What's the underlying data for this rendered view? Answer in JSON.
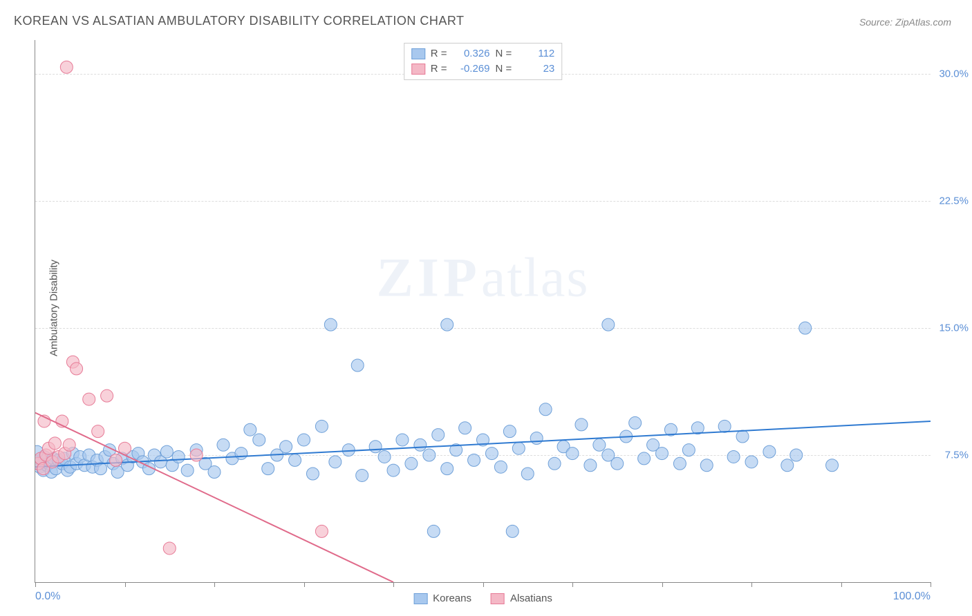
{
  "title": "KOREAN VS ALSATIAN AMBULATORY DISABILITY CORRELATION CHART",
  "source": "Source: ZipAtlas.com",
  "y_axis_label": "Ambulatory Disability",
  "watermark_zip": "ZIP",
  "watermark_atlas": "atlas",
  "chart": {
    "type": "scatter",
    "xlim": [
      0,
      100
    ],
    "ylim": [
      0,
      32
    ],
    "x_ticks": [
      0,
      10,
      20,
      30,
      40,
      50,
      60,
      70,
      80,
      90,
      100
    ],
    "x_tick_labels_shown": {
      "0": "0.0%",
      "100": "100.0%"
    },
    "y_ticks": [
      7.5,
      15.0,
      22.5,
      30.0
    ],
    "y_tick_labels": [
      "7.5%",
      "15.0%",
      "22.5%",
      "30.0%"
    ],
    "background_color": "#ffffff",
    "grid_color": "#dddddd",
    "axis_color": "#888888",
    "tick_label_color": "#5b8fd6",
    "series": [
      {
        "name": "Koreans",
        "marker_color_fill": "#a8c8ee",
        "marker_color_stroke": "#6fa0d8",
        "marker_opacity": 0.65,
        "marker_radius": 9,
        "trend_color": "#2f7ad1",
        "trend_width": 2,
        "R_label": "R =",
        "R": "0.326",
        "N_label": "N =",
        "N": "112",
        "trend": {
          "x1": 0,
          "y1": 6.8,
          "x2": 100,
          "y2": 9.5
        },
        "points": [
          [
            0.3,
            7.1
          ],
          [
            0.5,
            6.8
          ],
          [
            0.6,
            7.2
          ],
          [
            0.9,
            6.6
          ],
          [
            1.0,
            7.4
          ],
          [
            1.3,
            6.9
          ],
          [
            1.5,
            7.0
          ],
          [
            1.8,
            6.5
          ],
          [
            2.0,
            7.3
          ],
          [
            2.3,
            6.7
          ],
          [
            2.6,
            7.2
          ],
          [
            3.0,
            7.0
          ],
          [
            3.2,
            7.3
          ],
          [
            3.6,
            6.6
          ],
          [
            3.9,
            6.8
          ],
          [
            4.2,
            7.6
          ],
          [
            4.6,
            7.0
          ],
          [
            5.0,
            7.4
          ],
          [
            5.5,
            6.9
          ],
          [
            6.0,
            7.5
          ],
          [
            6.4,
            6.8
          ],
          [
            6.9,
            7.2
          ],
          [
            7.3,
            6.7
          ],
          [
            7.8,
            7.4
          ],
          [
            8.3,
            7.8
          ],
          [
            8.7,
            7.0
          ],
          [
            9.2,
            6.5
          ],
          [
            9.7,
            7.3
          ],
          [
            10.3,
            6.9
          ],
          [
            10.9,
            7.4
          ],
          [
            11.5,
            7.6
          ],
          [
            12.0,
            7.1
          ],
          [
            12.7,
            6.7
          ],
          [
            13.3,
            7.5
          ],
          [
            14.0,
            7.1
          ],
          [
            14.7,
            7.7
          ],
          [
            15.3,
            6.9
          ],
          [
            16.0,
            7.4
          ],
          [
            17.0,
            6.6
          ],
          [
            18.0,
            7.8
          ],
          [
            19.0,
            7.0
          ],
          [
            20.0,
            6.5
          ],
          [
            21.0,
            8.1
          ],
          [
            22.0,
            7.3
          ],
          [
            23.0,
            7.6
          ],
          [
            24.0,
            9.0
          ],
          [
            25.0,
            8.4
          ],
          [
            26.0,
            6.7
          ],
          [
            27.0,
            7.5
          ],
          [
            28.0,
            8.0
          ],
          [
            29.0,
            7.2
          ],
          [
            30.0,
            8.4
          ],
          [
            31.0,
            6.4
          ],
          [
            32.0,
            9.2
          ],
          [
            33.0,
            15.2
          ],
          [
            33.5,
            7.1
          ],
          [
            35.0,
            7.8
          ],
          [
            36.0,
            12.8
          ],
          [
            36.5,
            6.3
          ],
          [
            38.0,
            8.0
          ],
          [
            39.0,
            7.4
          ],
          [
            40.0,
            6.6
          ],
          [
            41.0,
            8.4
          ],
          [
            42.0,
            7.0
          ],
          [
            43.0,
            8.1
          ],
          [
            44.0,
            7.5
          ],
          [
            44.5,
            3.0
          ],
          [
            45.0,
            8.7
          ],
          [
            46.0,
            6.7
          ],
          [
            47.0,
            7.8
          ],
          [
            48.0,
            9.1
          ],
          [
            49.0,
            7.2
          ],
          [
            50.0,
            8.4
          ],
          [
            51.0,
            7.6
          ],
          [
            52.0,
            6.8
          ],
          [
            53.3,
            3.0
          ],
          [
            53.0,
            8.9
          ],
          [
            54.0,
            7.9
          ],
          [
            55.0,
            6.4
          ],
          [
            56.0,
            8.5
          ],
          [
            57.0,
            10.2
          ],
          [
            58.0,
            7.0
          ],
          [
            59.0,
            8.0
          ],
          [
            60.0,
            7.6
          ],
          [
            61.0,
            9.3
          ],
          [
            62.0,
            6.9
          ],
          [
            63.0,
            8.1
          ],
          [
            64.0,
            7.5
          ],
          [
            65.0,
            7.0
          ],
          [
            66.0,
            8.6
          ],
          [
            67.0,
            9.4
          ],
          [
            68.0,
            7.3
          ],
          [
            69.0,
            8.1
          ],
          [
            70.0,
            7.6
          ],
          [
            71.0,
            9.0
          ],
          [
            72.0,
            7.0
          ],
          [
            73.0,
            7.8
          ],
          [
            74.0,
            9.1
          ],
          [
            75.0,
            6.9
          ],
          [
            77.0,
            9.2
          ],
          [
            78.0,
            7.4
          ],
          [
            79.0,
            8.6
          ],
          [
            80.0,
            7.1
          ],
          [
            82.0,
            7.7
          ],
          [
            84.0,
            6.9
          ],
          [
            85.0,
            7.5
          ],
          [
            86.0,
            15.0
          ],
          [
            89.0,
            6.9
          ],
          [
            46.0,
            15.2
          ],
          [
            64.0,
            15.2
          ],
          [
            0.2,
            7.7
          ],
          [
            0.4,
            7.0
          ]
        ]
      },
      {
        "name": "Alsatians",
        "marker_color_fill": "#f4b8c6",
        "marker_color_stroke": "#e77a96",
        "marker_opacity": 0.65,
        "marker_radius": 9,
        "trend_color": "#e06a8a",
        "trend_width": 2,
        "R_label": "R =",
        "R": "-0.269",
        "N_label": "N =",
        "N": "23",
        "trend": {
          "x1": 0,
          "y1": 10.0,
          "x2": 40,
          "y2": 0
        },
        "points": [
          [
            0.3,
            7.0
          ],
          [
            0.6,
            7.3
          ],
          [
            0.9,
            6.7
          ],
          [
            1.2,
            7.5
          ],
          [
            1.5,
            7.9
          ],
          [
            1.9,
            7.1
          ],
          [
            2.2,
            8.2
          ],
          [
            2.6,
            7.4
          ],
          [
            3.0,
            9.5
          ],
          [
            3.3,
            7.6
          ],
          [
            3.8,
            8.1
          ],
          [
            4.2,
            13.0
          ],
          [
            4.6,
            12.6
          ],
          [
            1.0,
            9.5
          ],
          [
            3.5,
            30.4
          ],
          [
            6.0,
            10.8
          ],
          [
            7.0,
            8.9
          ],
          [
            8.0,
            11.0
          ],
          [
            9.0,
            7.2
          ],
          [
            10.0,
            7.9
          ],
          [
            15.0,
            2.0
          ],
          [
            18.0,
            7.5
          ],
          [
            32.0,
            3.0
          ]
        ]
      }
    ]
  },
  "bottom_legend": [
    {
      "label": "Koreans",
      "fill": "#a8c8ee",
      "stroke": "#6fa0d8"
    },
    {
      "label": "Alsatians",
      "fill": "#f4b8c6",
      "stroke": "#e77a96"
    }
  ]
}
